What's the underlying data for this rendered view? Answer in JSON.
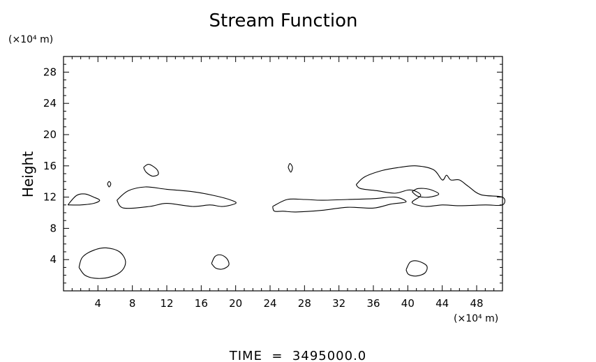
{
  "chart_data": {
    "type": "contour",
    "title": "Stream Function",
    "ylabel": "Height",
    "y_unit": "(×10⁴ m)",
    "x_unit": "(×10⁴ m)",
    "xlim": [
      0,
      51
    ],
    "ylim": [
      0,
      30
    ],
    "x_ticks": [
      4,
      8,
      12,
      16,
      20,
      24,
      28,
      32,
      36,
      40,
      44,
      48
    ],
    "y_ticks": [
      4,
      8,
      12,
      16,
      20,
      24,
      28
    ],
    "grid": false,
    "footer": "TIME  =  3495000.0",
    "contours": [
      {
        "name": "band-left-small",
        "points": [
          [
            0.5,
            11.0
          ],
          [
            1.5,
            12.2
          ],
          [
            2.5,
            12.4
          ],
          [
            3.5,
            12.0
          ],
          [
            4.2,
            11.6
          ],
          [
            3.5,
            11.2
          ],
          [
            2,
            11.0
          ],
          [
            0.5,
            11.0
          ]
        ]
      },
      {
        "name": "band-left-main",
        "points": [
          [
            6.2,
            11.6
          ],
          [
            7.5,
            12.8
          ],
          [
            9.5,
            13.3
          ],
          [
            12,
            13.0
          ],
          [
            15,
            12.7
          ],
          [
            17.5,
            12.2
          ],
          [
            19.5,
            11.6
          ],
          [
            20,
            11.2
          ],
          [
            18.5,
            10.8
          ],
          [
            17,
            11.0
          ],
          [
            15,
            10.8
          ],
          [
            12,
            11.2
          ],
          [
            10,
            10.8
          ],
          [
            7,
            10.6
          ],
          [
            6.2,
            11.6
          ]
        ]
      },
      {
        "name": "small-loop-10-15",
        "points": [
          [
            9.3,
            15.8
          ],
          [
            9.9,
            16.2
          ],
          [
            10.8,
            15.6
          ],
          [
            11.0,
            14.9
          ],
          [
            10.3,
            14.7
          ],
          [
            9.6,
            15.2
          ],
          [
            9.3,
            15.8
          ]
        ]
      },
      {
        "name": "small-loop-5-14",
        "points": [
          [
            5.1,
            13.7
          ],
          [
            5.3,
            14.0
          ],
          [
            5.5,
            13.7
          ],
          [
            5.3,
            13.3
          ],
          [
            5.1,
            13.7
          ]
        ]
      },
      {
        "name": "small-loop-26-16",
        "points": [
          [
            26.1,
            15.8
          ],
          [
            26.3,
            16.3
          ],
          [
            26.6,
            15.8
          ],
          [
            26.4,
            15.2
          ],
          [
            26.1,
            15.8
          ]
        ]
      },
      {
        "name": "band-right-lower",
        "points": [
          [
            24.3,
            10.8
          ],
          [
            26,
            11.7
          ],
          [
            28,
            11.7
          ],
          [
            30,
            11.6
          ],
          [
            33,
            11.7
          ],
          [
            36,
            11.8
          ],
          [
            38.5,
            12.0
          ],
          [
            39.8,
            11.4
          ],
          [
            38,
            11.1
          ],
          [
            36,
            10.6
          ],
          [
            33,
            10.7
          ],
          [
            30,
            10.3
          ],
          [
            27,
            10.1
          ],
          [
            25.5,
            10.2
          ],
          [
            24.5,
            10.2
          ],
          [
            24.3,
            10.8
          ]
        ]
      },
      {
        "name": "band-right-upper",
        "points": [
          [
            34,
            13.6
          ],
          [
            35,
            14.6
          ],
          [
            37,
            15.4
          ],
          [
            39,
            15.8
          ],
          [
            41,
            16.0
          ],
          [
            43,
            15.5
          ],
          [
            44,
            14.2
          ],
          [
            44.5,
            14.8
          ],
          [
            45,
            14.2
          ],
          [
            46,
            14.2
          ],
          [
            47,
            13.4
          ],
          [
            48.5,
            12.3
          ],
          [
            51,
            12.0
          ],
          [
            51,
            11.0
          ],
          [
            49,
            11.0
          ],
          [
            46,
            10.9
          ],
          [
            44,
            11.0
          ],
          [
            42,
            10.8
          ],
          [
            40.5,
            11.3
          ],
          [
            41.5,
            12.2
          ],
          [
            40.8,
            12.8
          ],
          [
            40,
            12.9
          ],
          [
            38.5,
            12.5
          ],
          [
            36.5,
            12.8
          ],
          [
            34.5,
            13.1
          ],
          [
            34,
            13.6
          ]
        ]
      },
      {
        "name": "inner-loop-right",
        "points": [
          [
            40.5,
            12.7
          ],
          [
            41.2,
            13.1
          ],
          [
            42.5,
            13.0
          ],
          [
            43.6,
            12.4
          ],
          [
            42.5,
            12.0
          ],
          [
            41.2,
            12.1
          ],
          [
            40.5,
            12.7
          ]
        ]
      },
      {
        "name": "ellipse-bottom-left",
        "points": [
          [
            1.8,
            3.0
          ],
          [
            2.2,
            4.3
          ],
          [
            3.5,
            5.2
          ],
          [
            5,
            5.5
          ],
          [
            6.5,
            5.0
          ],
          [
            7.2,
            3.8
          ],
          [
            6.8,
            2.6
          ],
          [
            5.5,
            1.8
          ],
          [
            3.8,
            1.6
          ],
          [
            2.5,
            2.0
          ],
          [
            1.8,
            3.0
          ]
        ]
      },
      {
        "name": "ellipse-18",
        "points": [
          [
            17.2,
            3.5
          ],
          [
            17.6,
            4.4
          ],
          [
            18.3,
            4.6
          ],
          [
            19.0,
            4.1
          ],
          [
            19.2,
            3.3
          ],
          [
            18.5,
            2.8
          ],
          [
            17.7,
            2.9
          ],
          [
            17.2,
            3.5
          ]
        ]
      },
      {
        "name": "ellipse-41",
        "points": [
          [
            39.8,
            2.7
          ],
          [
            40.3,
            3.7
          ],
          [
            41.2,
            3.8
          ],
          [
            42.2,
            3.2
          ],
          [
            42.0,
            2.3
          ],
          [
            41.0,
            1.9
          ],
          [
            40.1,
            2.1
          ],
          [
            39.8,
            2.7
          ]
        ]
      }
    ]
  }
}
